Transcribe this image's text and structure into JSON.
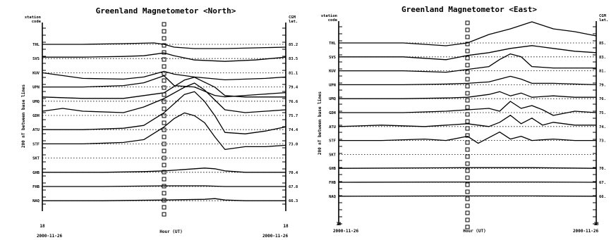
{
  "chart_data": [
    {
      "type": "line",
      "title": "Greenland Magnetometor <North>",
      "left_header": "station code",
      "right_header": "CGM lat.",
      "ylabel": "200 nT between base lines",
      "xlabel": "Hour (UT)",
      "x_tick_left": "18",
      "x_tick_right": "18",
      "date_left": "2000-11-26",
      "date_right": "2000-11-26",
      "x_range": [
        18,
        42
      ],
      "marker_x": 30,
      "stations": [
        "THL",
        "SVS",
        "KUV",
        "UPN",
        "UMQ",
        "GDH",
        "ATU",
        "STF",
        "SKT",
        "GHB",
        "FHB",
        "NAQ"
      ],
      "cgm_lat": [
        "85.2",
        "83.5",
        "81.1",
        "79.4",
        "76.6",
        "75.7",
        "74.4",
        "73.0",
        "",
        "70.4",
        "67.8",
        "66.3"
      ],
      "series": [
        {
          "name": "THL",
          "x": [
            18,
            22,
            26,
            29,
            30,
            31,
            33,
            36,
            39,
            42
          ],
          "y": [
            0,
            0,
            0.05,
            0.1,
            0,
            -0.2,
            -0.3,
            -0.3,
            -0.25,
            -0.2
          ]
        },
        {
          "name": "SVS",
          "x": [
            18,
            22,
            26,
            28,
            30,
            31,
            33,
            36,
            39,
            42
          ],
          "y": [
            0.1,
            0.1,
            0.15,
            0.2,
            0.4,
            0.2,
            -0.1,
            -0.2,
            -0.1,
            0.1
          ]
        },
        {
          "name": "KUV",
          "x": [
            18,
            20,
            22,
            26,
            28,
            30,
            31,
            33,
            36,
            40,
            42
          ],
          "y": [
            0,
            -0.2,
            -0.4,
            -0.45,
            -0.3,
            0.1,
            -0.1,
            -0.3,
            -0.5,
            -0.4,
            -0.3
          ]
        },
        {
          "name": "UPN",
          "x": [
            18,
            22,
            26,
            28,
            30,
            31,
            33,
            35,
            36,
            38,
            40,
            42
          ],
          "y": [
            0,
            0,
            0.1,
            0.3,
            0.8,
            0.1,
            0,
            -0.6,
            -0.7,
            -0.6,
            -0.5,
            -0.4
          ]
        },
        {
          "name": "UMQ",
          "x": [
            18,
            22,
            26,
            28,
            30,
            32,
            33,
            35,
            36,
            38,
            40,
            42
          ],
          "y": [
            0.3,
            0.2,
            0.2,
            0.4,
            0.6,
            1.5,
            1.7,
            1.0,
            0.4,
            0.3,
            0.3,
            0.3
          ]
        },
        {
          "name": "GDH",
          "x": [
            18,
            20,
            22,
            26,
            28,
            30,
            32,
            33,
            34,
            36,
            38,
            40,
            42
          ],
          "y": [
            0.3,
            0.5,
            0.3,
            0.2,
            0.6,
            1.2,
            2.0,
            2.3,
            1.8,
            0.4,
            0.2,
            0.3,
            0.4
          ]
        },
        {
          "name": "ATU",
          "x": [
            18,
            22,
            26,
            28,
            30,
            32,
            33,
            34,
            35,
            36,
            38,
            40,
            42
          ],
          "y": [
            0,
            0,
            0.1,
            0.3,
            1.2,
            2.5,
            2.7,
            2.0,
            1.0,
            -0.2,
            -0.3,
            -0.1,
            0.2
          ]
        },
        {
          "name": "STF",
          "x": [
            18,
            22,
            26,
            28,
            30,
            31,
            32,
            33,
            34,
            35,
            36,
            38,
            40,
            42
          ],
          "y": [
            0,
            0,
            0.1,
            0.3,
            1.2,
            1.8,
            2.2,
            2.0,
            1.5,
            0.5,
            -0.4,
            -0.2,
            -0.2,
            -0.1
          ]
        },
        {
          "name": "SKT",
          "x": [],
          "y": []
        },
        {
          "name": "GHB",
          "x": [
            18,
            24,
            28,
            30,
            32,
            34,
            35,
            36,
            38,
            42
          ],
          "y": [
            0,
            0,
            0.05,
            0.1,
            0.2,
            0.3,
            0.25,
            0.1,
            0,
            0
          ]
        },
        {
          "name": "FHB",
          "x": [
            18,
            24,
            30,
            34,
            36,
            38,
            42
          ],
          "y": [
            0,
            0,
            0.05,
            0.05,
            0,
            0,
            0
          ]
        },
        {
          "name": "NAQ",
          "x": [
            18,
            24,
            30,
            34,
            35,
            36,
            38,
            42
          ],
          "y": [
            0,
            0,
            0.05,
            0.1,
            0.15,
            0.05,
            0,
            0
          ]
        }
      ]
    },
    {
      "type": "line",
      "title": "Greenland Magnetometor <East>",
      "left_header": "station code",
      "right_header": "CGM lat.",
      "ylabel": "200 nT between base lines",
      "xlabel": "Hour (UT)",
      "x_tick_left": "18",
      "x_tick_right": "18",
      "date_left": "2000-11-26",
      "date_right": "2000-11-26",
      "x_range": [
        18,
        42
      ],
      "marker_x": 30,
      "stations": [
        "THL",
        "SVS",
        "KUV",
        "UPN",
        "UMQ",
        "GDH",
        "ATU",
        "STF",
        "SKT",
        "GHB",
        "FHB",
        "NAQ"
      ],
      "cgm_lat": [
        "85.",
        "83.",
        "81.",
        "79.",
        "76.",
        "75.",
        "74.",
        "73.",
        "",
        "70.",
        "67.",
        "66."
      ],
      "series": [
        {
          "name": "THL",
          "x": [
            18,
            24,
            28,
            30,
            32,
            34,
            36,
            38,
            40,
            42
          ],
          "y": [
            0,
            0,
            -0.2,
            0,
            0.6,
            1.0,
            1.5,
            1.0,
            0.8,
            0.5
          ]
        },
        {
          "name": "SVS",
          "x": [
            18,
            24,
            28,
            30,
            32,
            34,
            36,
            38,
            40,
            42
          ],
          "y": [
            0,
            0,
            -0.2,
            0.1,
            0.3,
            0.6,
            0.8,
            0.6,
            0.4,
            0.3
          ]
        },
        {
          "name": "KUV",
          "x": [
            18,
            24,
            28,
            30,
            32,
            33,
            34,
            35,
            36,
            38,
            42
          ],
          "y": [
            0,
            0,
            -0.1,
            0.1,
            0.3,
            0.8,
            1.2,
            1.0,
            0.3,
            0.2,
            0.2
          ]
        },
        {
          "name": "UPN",
          "x": [
            18,
            24,
            28,
            30,
            32,
            34,
            35,
            36,
            38,
            42
          ],
          "y": [
            0,
            0,
            0.05,
            0.1,
            0.2,
            0.6,
            0.4,
            0.1,
            0.1,
            0
          ]
        },
        {
          "name": "UMQ",
          "x": [
            18,
            24,
            28,
            30,
            32,
            33,
            34,
            35,
            36,
            38,
            40,
            42
          ],
          "y": [
            0,
            0,
            0.05,
            0.1,
            0.3,
            0.5,
            0.2,
            0.4,
            0.1,
            0.2,
            0.1,
            0.1
          ]
        },
        {
          "name": "GDH",
          "x": [
            18,
            24,
            28,
            30,
            32,
            33,
            34,
            35,
            36,
            37,
            38,
            40,
            42
          ],
          "y": [
            0,
            0,
            0.1,
            0.2,
            0.3,
            0.1,
            0.8,
            0.3,
            0.5,
            0.2,
            -0.2,
            0.1,
            0
          ]
        },
        {
          "name": "ATU",
          "x": [
            18,
            22,
            26,
            28,
            30,
            32,
            33,
            34,
            35,
            36,
            37,
            38,
            40,
            42
          ],
          "y": [
            0,
            0.1,
            0,
            0.1,
            0.2,
            0,
            0.3,
            0.8,
            0.2,
            0.6,
            0.1,
            0.3,
            0.1,
            0.1
          ]
        },
        {
          "name": "STF",
          "x": [
            18,
            22,
            26,
            28,
            30,
            31,
            32,
            33,
            34,
            35,
            36,
            38,
            40,
            42
          ],
          "y": [
            0,
            0,
            0.1,
            0,
            0.3,
            -0.2,
            0.2,
            0.6,
            0.1,
            0.3,
            0,
            0.1,
            0,
            0
          ]
        },
        {
          "name": "SKT",
          "x": [],
          "y": []
        },
        {
          "name": "GHB",
          "x": [
            18,
            30,
            36,
            42
          ],
          "y": [
            0,
            0.05,
            0.05,
            0
          ]
        },
        {
          "name": "FHB",
          "x": [
            18,
            30,
            36,
            42
          ],
          "y": [
            0,
            0.02,
            0.02,
            0
          ]
        },
        {
          "name": "NAQ",
          "x": [
            18,
            30,
            36,
            42
          ],
          "y": [
            0,
            0.02,
            0.02,
            0
          ]
        }
      ]
    }
  ]
}
